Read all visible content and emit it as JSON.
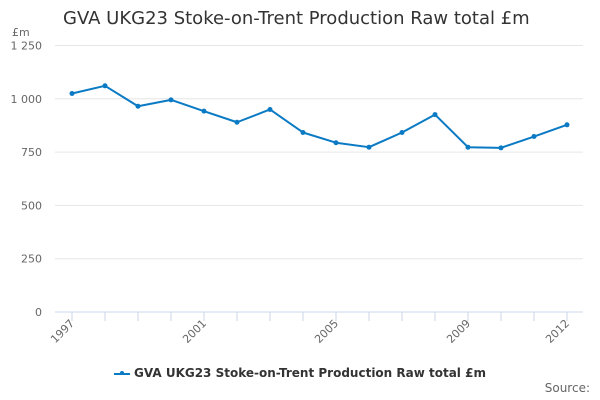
{
  "chart_data": {
    "type": "line",
    "title": "GVA UKG23 Stoke-on-Trent Production Raw total £m",
    "ylabel": "£m",
    "xlabel": "",
    "ylim": [
      0,
      1250
    ],
    "yticks": [
      0,
      250,
      500,
      750,
      1000,
      1250
    ],
    "ytick_labels": [
      "0",
      "250",
      "500",
      "750",
      "1 000",
      "1 250"
    ],
    "xtick_labels": [
      "1997",
      "2001",
      "2005",
      "2009",
      "2012"
    ],
    "x": [
      1997,
      1998,
      1999,
      2000,
      2001,
      2002,
      2003,
      2004,
      2005,
      2006,
      2007,
      2008,
      2009,
      2010,
      2011,
      2012
    ],
    "series": [
      {
        "name": "GVA UKG23 Stoke-on-Trent Production Raw total £m",
        "color": "#0a7ac4",
        "values": [
          1025,
          1061,
          965,
          995,
          942,
          890,
          950,
          842,
          794,
          773,
          842,
          926,
          773,
          770,
          823,
          878
        ]
      }
    ],
    "grid": true,
    "legend_position": "bottom-center",
    "source_label": "Source:"
  }
}
